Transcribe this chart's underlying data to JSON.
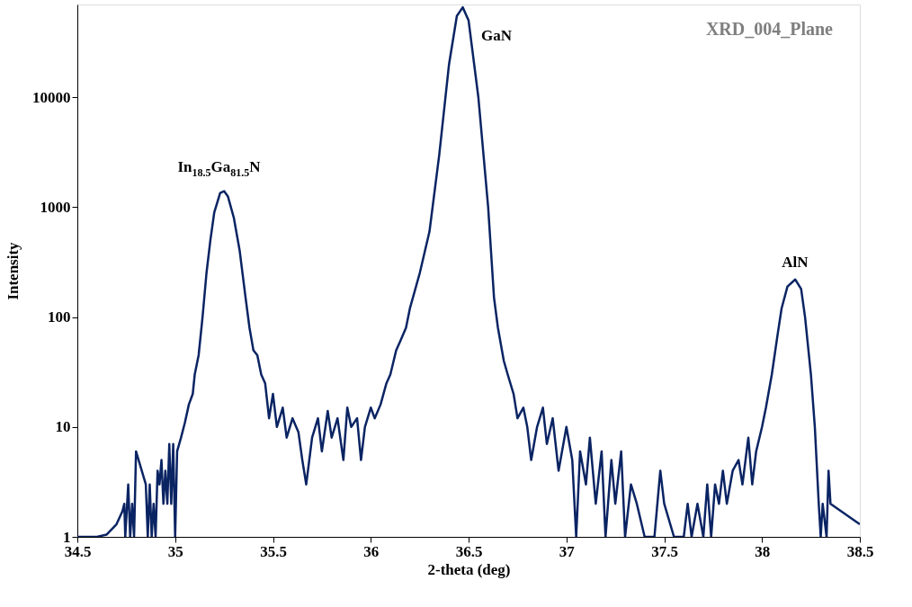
{
  "chart_data": {
    "type": "line",
    "title": "XRD_004_Plane",
    "xlabel": "2-theta (deg)",
    "ylabel": "Intensity",
    "log": "y",
    "grid": false,
    "marker": "none",
    "line_style": "solid",
    "xlim": [
      34.5,
      38.5
    ],
    "xticks": [
      34.5,
      35,
      35.5,
      36,
      36.5,
      37,
      37.5,
      38,
      38.5
    ],
    "ylim": [
      1,
      70000
    ],
    "yticks": [
      1,
      10,
      100,
      1000,
      10000
    ],
    "annotations": [
      "In$_{18.5}$Ga$_{81.5}$N",
      "GaN",
      "AlN"
    ],
    "x": [
      34.5,
      34.6,
      34.65,
      34.7,
      34.73,
      34.74,
      34.745,
      34.76,
      34.77,
      34.78,
      34.79,
      34.8,
      34.85,
      34.86,
      34.87,
      34.88,
      34.89,
      34.9,
      34.91,
      34.92,
      34.93,
      34.94,
      34.95,
      34.96,
      34.97,
      34.98,
      34.99,
      35.0,
      35.01,
      35.03,
      35.05,
      35.07,
      35.09,
      35.1,
      35.12,
      35.14,
      35.16,
      35.18,
      35.2,
      35.23,
      35.25,
      35.27,
      35.3,
      35.33,
      35.36,
      35.38,
      35.4,
      35.42,
      35.44,
      35.46,
      35.48,
      35.5,
      35.52,
      35.55,
      35.57,
      35.6,
      35.63,
      35.65,
      35.67,
      35.7,
      35.73,
      35.75,
      35.78,
      35.8,
      35.83,
      35.86,
      35.88,
      35.9,
      35.93,
      35.95,
      35.97,
      36.0,
      36.02,
      36.05,
      36.08,
      36.1,
      36.13,
      36.15,
      36.18,
      36.2,
      36.25,
      36.3,
      36.35,
      36.4,
      36.44,
      36.47,
      36.5,
      36.55,
      36.6,
      36.63,
      36.65,
      36.68,
      36.7,
      36.73,
      36.75,
      36.78,
      36.8,
      36.82,
      36.85,
      36.88,
      36.9,
      36.93,
      36.96,
      37.0,
      37.03,
      37.05,
      37.07,
      37.1,
      37.12,
      37.15,
      37.18,
      37.2,
      37.23,
      37.25,
      37.28,
      37.3,
      37.33,
      37.36,
      37.4,
      37.45,
      37.48,
      37.5,
      37.55,
      37.6,
      37.62,
      37.64,
      37.67,
      37.7,
      37.72,
      37.74,
      37.76,
      37.78,
      37.8,
      37.82,
      37.85,
      37.88,
      37.9,
      37.93,
      37.95,
      37.97,
      38.0,
      38.02,
      38.05,
      38.08,
      38.1,
      38.13,
      38.17,
      38.2,
      38.22,
      38.25,
      38.27,
      38.29,
      38.3,
      38.31,
      38.33,
      38.34,
      38.35,
      38.5
    ],
    "series": [
      {
        "color": "#0a2463",
        "values": [
          1,
          1,
          1.05,
          1.3,
          1.7,
          2,
          1,
          3,
          1,
          2,
          1,
          6,
          3,
          1,
          3,
          1,
          2,
          1,
          4,
          3,
          5,
          2,
          4,
          2,
          7,
          2,
          7,
          1,
          6,
          8,
          11,
          16,
          20,
          30,
          45,
          100,
          250,
          500,
          900,
          1350,
          1400,
          1250,
          800,
          400,
          150,
          80,
          50,
          45,
          30,
          25,
          12,
          20,
          10,
          15,
          8,
          12,
          9,
          5,
          3,
          8,
          12,
          6,
          14,
          8,
          12,
          5,
          15,
          10,
          12,
          5,
          10,
          15,
          12,
          16,
          25,
          30,
          50,
          60,
          80,
          120,
          250,
          600,
          3000,
          20000,
          55000,
          66000,
          50000,
          10000,
          1000,
          150,
          80,
          40,
          30,
          20,
          12,
          15,
          10,
          5,
          10,
          15,
          7,
          12,
          4,
          10,
          5,
          1,
          6,
          3,
          8,
          2,
          6,
          1,
          5,
          2,
          6,
          1,
          3,
          2,
          1,
          1,
          4,
          2,
          1,
          1,
          2,
          1,
          2,
          1,
          3,
          1,
          3,
          2,
          4,
          2,
          4,
          5,
          3,
          8,
          3,
          6,
          10,
          15,
          30,
          70,
          120,
          190,
          220,
          180,
          100,
          30,
          10,
          2,
          1,
          2,
          1,
          4,
          2,
          1.3
        ]
      }
    ]
  }
}
